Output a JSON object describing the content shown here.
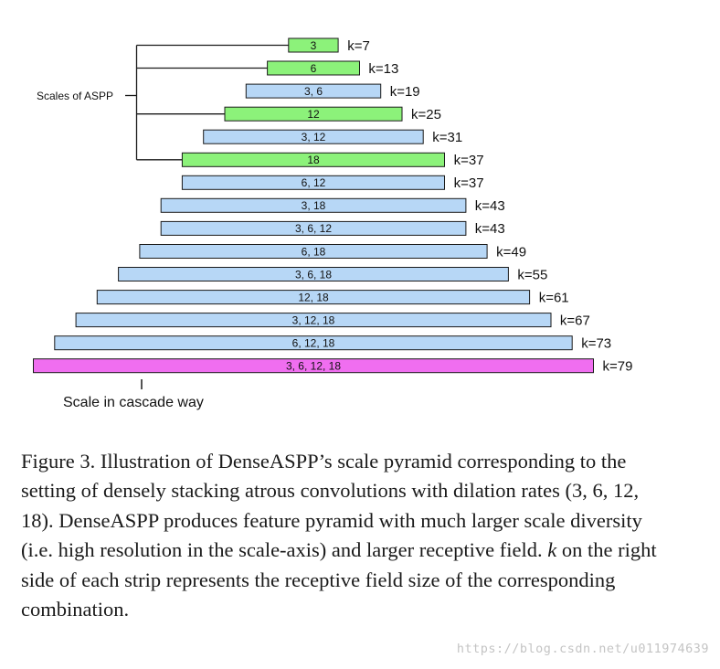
{
  "diagram": {
    "side_label": "Scales of ASPP",
    "bottom_label": "Scale in cascade way",
    "colors": {
      "green": "#8cf27a",
      "blue": "#b7d7f6",
      "magenta": "#f06ef0",
      "border": "#1a1a1a"
    },
    "strips": [
      {
        "label": "3",
        "k": "k=7",
        "value": 7,
        "color": "green"
      },
      {
        "label": "6",
        "k": "k=13",
        "value": 13,
        "color": "green"
      },
      {
        "label": "3, 6",
        "k": "k=19",
        "value": 19,
        "color": "blue"
      },
      {
        "label": "12",
        "k": "k=25",
        "value": 25,
        "color": "green"
      },
      {
        "label": "3, 12",
        "k": "k=31",
        "value": 31,
        "color": "blue"
      },
      {
        "label": "18",
        "k": "k=37",
        "value": 37,
        "color": "green"
      },
      {
        "label": "6, 12",
        "k": "k=37",
        "value": 37,
        "color": "blue"
      },
      {
        "label": "3, 18",
        "k": "k=43",
        "value": 43,
        "color": "blue"
      },
      {
        "label": "3, 6, 12",
        "k": "k=43",
        "value": 43,
        "color": "blue"
      },
      {
        "label": "6, 18",
        "k": "k=49",
        "value": 49,
        "color": "blue"
      },
      {
        "label": "3, 6, 18",
        "k": "k=55",
        "value": 55,
        "color": "blue"
      },
      {
        "label": "12, 18",
        "k": "k=61",
        "value": 61,
        "color": "blue"
      },
      {
        "label": "3, 12, 18",
        "k": "k=67",
        "value": 67,
        "color": "blue"
      },
      {
        "label": "6, 12, 18",
        "k": "k=73",
        "value": 73,
        "color": "blue"
      },
      {
        "label": "3, 6, 12, 18",
        "k": "k=79",
        "value": 79,
        "color": "magenta"
      }
    ]
  },
  "caption": {
    "text": "Figure 3. Illustration of DenseASPP’s scale pyramid corresponding to the setting of densely stacking atrous convolutions with dilation rates (3, 6, 12, 18). DenseASPP produces feature pyramid with much larger scale diversity (i.e. high resolution in the scale-axis) and larger receptive field. k on the right side of each strip represents the receptive field size of the corresponding combination."
  },
  "watermark": "https://blog.csdn.net/u011974639"
}
